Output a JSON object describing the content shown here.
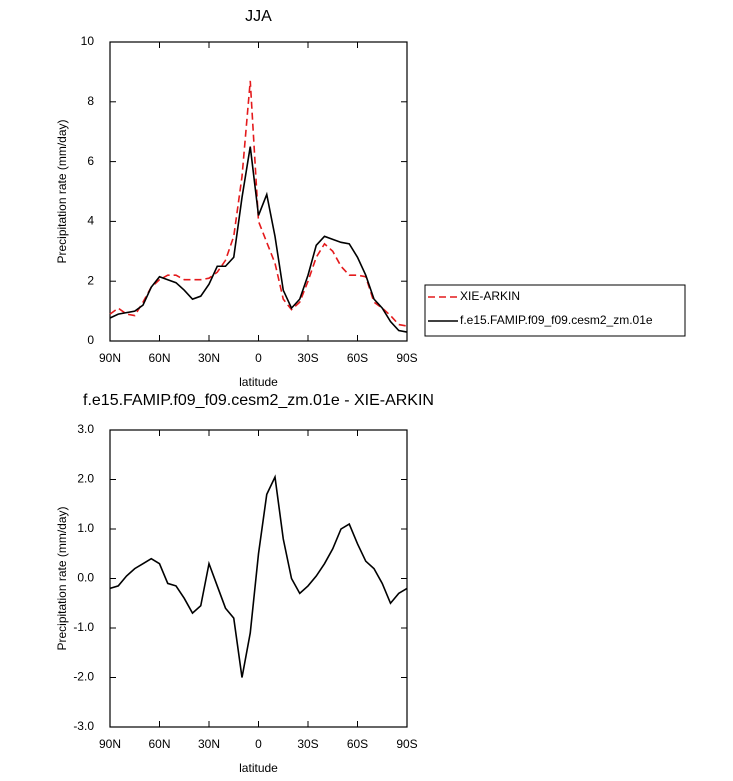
{
  "chart_data": [
    {
      "type": "line",
      "title": "JJA",
      "xlabel": "latitude",
      "ylabel": "Precipitation rate (mm/day)",
      "x": [
        90,
        85,
        80,
        75,
        70,
        65,
        60,
        55,
        50,
        45,
        40,
        35,
        30,
        25,
        20,
        15,
        10,
        5,
        0,
        -5,
        -10,
        -15,
        -20,
        -25,
        -30,
        -35,
        -40,
        -45,
        -50,
        -55,
        -60,
        -65,
        -70,
        -75,
        -80,
        -85,
        -90
      ],
      "series": [
        {
          "name": "XIE-ARKIN",
          "color": "#e41a1c",
          "dash": true,
          "values": [
            0.9,
            1.1,
            0.9,
            0.85,
            1.3,
            1.8,
            2.05,
            2.2,
            2.2,
            2.05,
            2.05,
            2.05,
            2.1,
            2.3,
            2.7,
            3.5,
            5.5,
            8.7,
            4.0,
            3.3,
            2.6,
            1.4,
            1.05,
            1.3,
            2.0,
            2.8,
            3.25,
            3.0,
            2.5,
            2.2,
            2.2,
            2.15,
            1.3,
            1.1,
            0.85,
            0.55,
            0.5
          ]
        },
        {
          "name": "f.e15.FAMIP.f09_f09.cesm2_zm.01e",
          "color": "#000000",
          "dash": false,
          "values": [
            0.77,
            0.9,
            0.95,
            1.0,
            1.2,
            1.8,
            2.15,
            2.05,
            1.95,
            1.7,
            1.4,
            1.5,
            1.9,
            2.5,
            2.5,
            2.8,
            4.8,
            6.5,
            4.2,
            4.9,
            3.5,
            1.7,
            1.1,
            1.4,
            2.2,
            3.2,
            3.5,
            3.4,
            3.3,
            3.25,
            2.8,
            2.2,
            1.4,
            1.1,
            0.65,
            0.35,
            0.3
          ]
        }
      ],
      "xlim": [
        90,
        -90
      ],
      "xticks": [
        {
          "value": 90,
          "label": "90N"
        },
        {
          "value": 60,
          "label": "60N"
        },
        {
          "value": 30,
          "label": "30N"
        },
        0,
        {
          "value": -30,
          "label": "30S"
        },
        {
          "value": -60,
          "label": "60S"
        },
        {
          "value": -90,
          "label": "90S"
        }
      ],
      "ylim": [
        0,
        10
      ],
      "yticks": [
        0,
        2,
        4,
        6,
        8,
        10
      ],
      "legend": "right"
    },
    {
      "type": "line",
      "title": "f.e15.FAMIP.f09_f09.cesm2_zm.01e - XIE-ARKIN",
      "xlabel": "latitude",
      "ylabel": "Precipitation rate (mm/day)",
      "x": [
        90,
        85,
        80,
        75,
        70,
        65,
        60,
        55,
        50,
        45,
        40,
        35,
        30,
        25,
        20,
        15,
        10,
        5,
        0,
        -5,
        -10,
        -15,
        -20,
        -25,
        -30,
        -35,
        -40,
        -45,
        -50,
        -55,
        -60,
        -65,
        -70,
        -75,
        -80,
        -85,
        -90
      ],
      "series": [
        {
          "color": "#000000",
          "dash": false,
          "values": [
            -0.2,
            -0.15,
            0.05,
            0.2,
            0.3,
            0.4,
            0.3,
            -0.1,
            -0.15,
            -0.4,
            -0.7,
            -0.55,
            0.3,
            -0.15,
            -0.6,
            -0.8,
            -2.0,
            -1.1,
            0.5,
            1.7,
            2.05,
            0.8,
            0.0,
            -0.3,
            -0.15,
            0.05,
            0.3,
            0.6,
            1.0,
            1.1,
            0.7,
            0.35,
            0.2,
            -0.1,
            -0.5,
            -0.3,
            -0.2
          ]
        }
      ],
      "xlim": [
        90,
        -90
      ],
      "xticks": [
        {
          "value": 90,
          "label": "90N"
        },
        {
          "value": 60,
          "label": "60N"
        },
        {
          "value": 30,
          "label": "30N"
        },
        0,
        {
          "value": -30,
          "label": "30S"
        },
        {
          "value": -60,
          "label": "60S"
        },
        {
          "value": -90,
          "label": "90S"
        }
      ],
      "ylim": [
        -3,
        3
      ],
      "yticks": [
        {
          "value": -3,
          "label": "-3.0"
        },
        {
          "value": -2,
          "label": "-2.0"
        },
        {
          "value": -1,
          "label": "-1.0"
        },
        {
          "value": 0,
          "label": "0.0"
        },
        {
          "value": 1,
          "label": "1.0"
        },
        {
          "value": 2,
          "label": "2.0"
        },
        {
          "value": 3,
          "label": "3.0"
        }
      ]
    }
  ]
}
